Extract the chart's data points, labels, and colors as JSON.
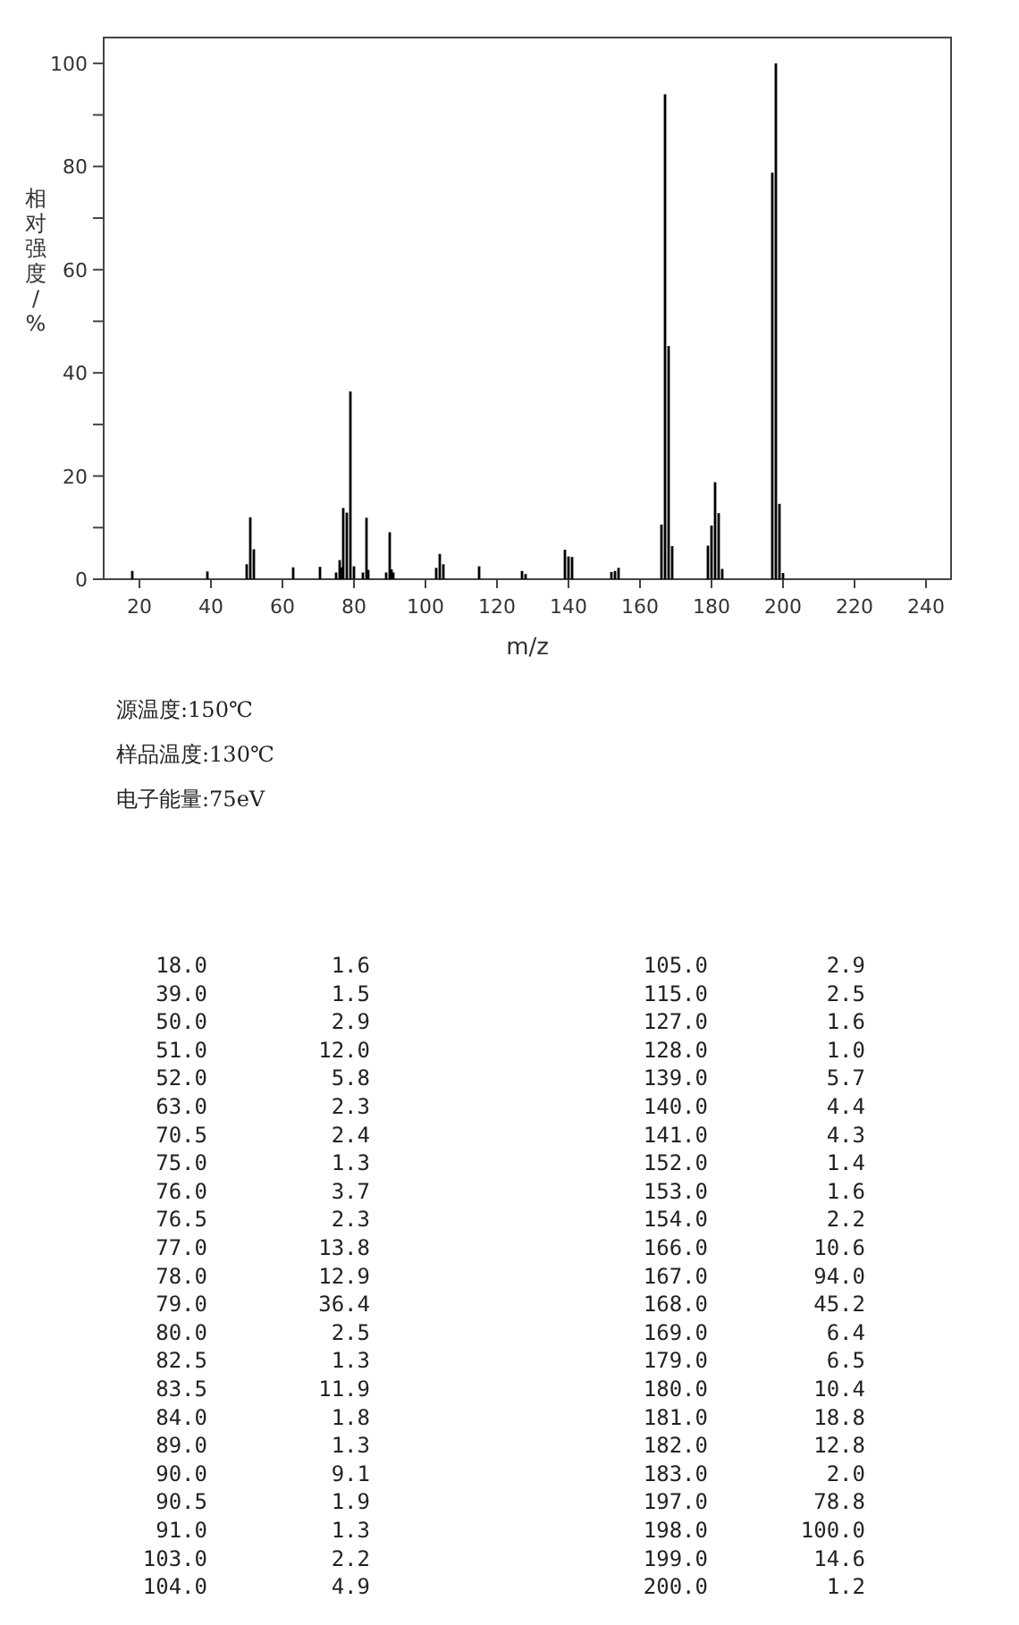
{
  "chart_data": {
    "type": "bar",
    "xlabel": "m/z",
    "ylabel": "相对强度/%",
    "color": "#000000",
    "x": [
      18.0,
      39.0,
      50.0,
      51.0,
      52.0,
      63.0,
      70.5,
      75.0,
      76.0,
      76.5,
      77.0,
      78.0,
      79.0,
      80.0,
      82.5,
      83.5,
      84.0,
      89.0,
      90.0,
      90.5,
      91.0,
      103.0,
      104.0,
      105.0,
      115.0,
      127.0,
      128.0,
      139.0,
      140.0,
      141.0,
      152.0,
      153.0,
      154.0,
      166.0,
      167.0,
      168.0,
      169.0,
      179.0,
      180.0,
      181.0,
      182.0,
      183.0,
      197.0,
      198.0,
      199.0,
      200.0
    ],
    "values": [
      1.6,
      1.5,
      2.9,
      12.0,
      5.8,
      2.3,
      2.4,
      1.3,
      3.7,
      2.3,
      13.8,
      12.9,
      36.4,
      2.5,
      1.3,
      11.9,
      1.8,
      1.3,
      9.1,
      1.9,
      1.3,
      2.2,
      4.9,
      2.9,
      2.5,
      1.6,
      1.0,
      5.7,
      4.4,
      4.3,
      1.4,
      1.6,
      2.2,
      10.6,
      94.0,
      45.2,
      6.4,
      6.5,
      10.4,
      18.8,
      12.8,
      2.0,
      78.8,
      100.0,
      14.6,
      1.2
    ],
    "xlim": [
      10,
      247
    ],
    "xticks": [
      20,
      40,
      60,
      80,
      100,
      120,
      140,
      160,
      180,
      200,
      220,
      240
    ],
    "ylim": [
      0,
      105
    ],
    "yticks": [
      0,
      {
        "value": 10,
        "label": null
      },
      20,
      {
        "value": 30,
        "label": null
      },
      40,
      {
        "value": 50,
        "label": null
      },
      60,
      {
        "value": 70,
        "label": null
      },
      80,
      {
        "value": 90,
        "label": null
      },
      100
    ],
    "grid": false,
    "annotations": [
      "源温度:150℃",
      "样品温度:130℃",
      "电子能量:75eV",
      "18.0",
      "1.6",
      "105.0",
      "2.9",
      "39.0",
      "1.5",
      "115.0",
      "2.5",
      "50.0",
      "2.9",
      "127.0",
      "1.6",
      "51.0",
      "12.0",
      "128.0",
      "1.0",
      "52.0",
      "5.8",
      "139.0",
      "5.7",
      "63.0",
      "2.3",
      "140.0",
      "4.4",
      "70.5",
      "2.4",
      "141.0",
      "4.3",
      "75.0",
      "1.3",
      "152.0",
      "1.4",
      "76.0",
      "3.7",
      "153.0",
      "1.6",
      "76.5",
      "2.3",
      "154.0",
      "2.2",
      "77.0",
      "13.8",
      "166.0",
      "10.6",
      "78.0",
      "12.9",
      "167.0",
      "94.0",
      "79.0",
      "36.4",
      "168.0",
      "45.2",
      "80.0",
      "2.5",
      "169.0",
      "6.4",
      "82.5",
      "1.3",
      "179.0",
      "6.5",
      "83.5",
      "11.9",
      "180.0",
      "10.4",
      "84.0",
      "1.8",
      "181.0",
      "18.8",
      "89.0",
      "1.3",
      "182.0",
      "12.8",
      "90.0",
      "9.1",
      "183.0",
      "2.0",
      "90.5",
      "1.9",
      "197.0",
      "78.8",
      "91.0",
      "1.3",
      "198.0",
      "100.0",
      "103.0",
      "2.2",
      "199.0",
      "14.6",
      "104.0",
      "4.9",
      "200.0",
      "1.2"
    ]
  }
}
